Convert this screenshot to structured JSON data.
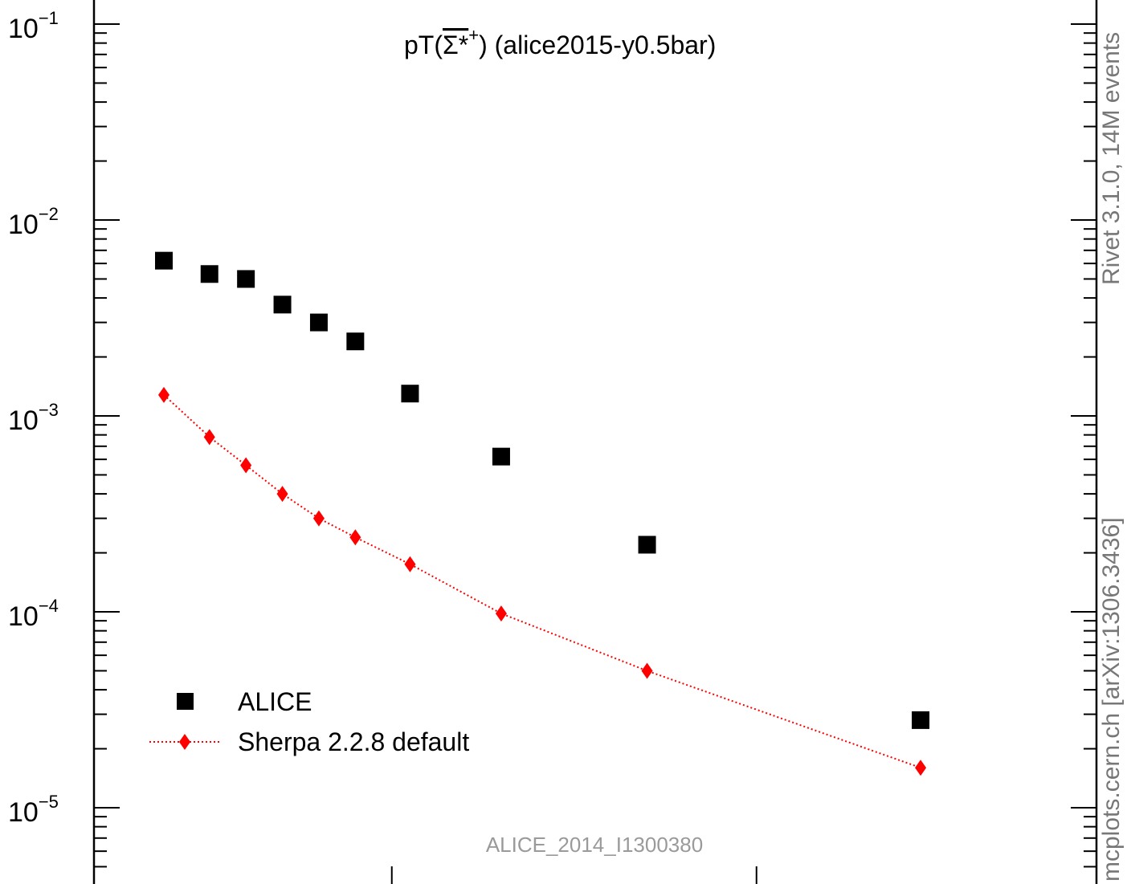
{
  "chart_data": {
    "type": "scatter",
    "title_prefix": "pT(",
    "title_particle": "Σ*",
    "title_charge": "+",
    "title_suffix": ") (alice2015-y0.5bar)",
    "analysis_label": "ALICE_2014_I1300380",
    "y_scale": "log",
    "ylim": [
      5e-06,
      0.13
    ],
    "xlim": [
      0.5,
      6.9
    ],
    "y_tick_labels": [
      {
        "base": "10",
        "exp": "−1",
        "value": 0.1
      },
      {
        "base": "10",
        "exp": "−2",
        "value": 0.01
      },
      {
        "base": "10",
        "exp": "−3",
        "value": 0.001
      },
      {
        "base": "10",
        "exp": "−4",
        "value": 0.0001
      },
      {
        "base": "10",
        "exp": "−5",
        "value": 1e-05
      }
    ],
    "x_major_ticks": [
      2,
      4
    ],
    "series": [
      {
        "name": "ALICE",
        "marker": "square",
        "color": "#000000",
        "x": [
          0.75,
          1.0,
          1.2,
          1.4,
          1.6,
          1.8,
          2.1,
          2.6,
          3.4,
          4.9
        ],
        "y": [
          0.0062,
          0.0053,
          0.005,
          0.0037,
          0.003,
          0.0024,
          0.0013,
          0.00062,
          0.00022,
          2.8e-05
        ]
      },
      {
        "name": "Sherpa 2.2.8 default",
        "marker": "diamond",
        "line": "dotted",
        "color": "#ff0000",
        "x": [
          0.75,
          1.0,
          1.2,
          1.4,
          1.6,
          1.8,
          2.1,
          2.6,
          3.4,
          4.9
        ],
        "y": [
          0.00128,
          0.00078,
          0.00056,
          0.0004,
          0.0003,
          0.00024,
          0.000175,
          9.8e-05,
          5e-05,
          1.6e-05
        ]
      }
    ],
    "legend_position": "bottom-left",
    "grid": false
  },
  "side_labels": {
    "rivet": "Rivet 3.1.0,  14M events",
    "mcplots": "mcplots.cern.ch [arXiv:1306.3436]"
  }
}
